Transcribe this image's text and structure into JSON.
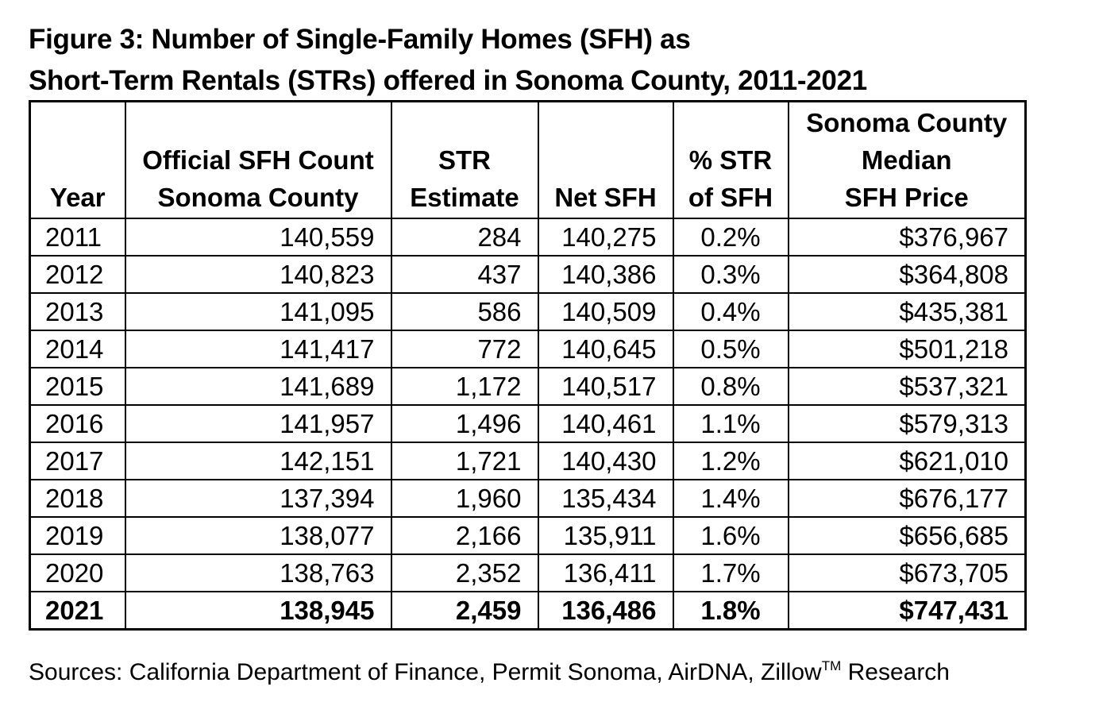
{
  "title": {
    "line1": "Figure 3: Number of Single-Family Homes (SFH) as",
    "line2": "Short-Term Rentals (STRs) offered in Sonoma County, 2011-2021"
  },
  "table": {
    "headers": {
      "year": [
        "Year"
      ],
      "official": [
        "Official SFH Count",
        "Sonoma County"
      ],
      "str": [
        "STR",
        "Estimate"
      ],
      "net": [
        "Net SFH"
      ],
      "pct": [
        "% STR",
        "of SFH"
      ],
      "price": [
        "Sonoma County",
        "Median",
        "SFH Price"
      ]
    },
    "rows": [
      {
        "year": "2011",
        "official": "140,559",
        "str": "284",
        "net": "140,275",
        "pct": "0.2%",
        "price": "$376,967"
      },
      {
        "year": "2012",
        "official": "140,823",
        "str": "437",
        "net": "140,386",
        "pct": "0.3%",
        "price": "$364,808"
      },
      {
        "year": "2013",
        "official": "141,095",
        "str": "586",
        "net": "140,509",
        "pct": "0.4%",
        "price": "$435,381"
      },
      {
        "year": "2014",
        "official": "141,417",
        "str": "772",
        "net": "140,645",
        "pct": "0.5%",
        "price": "$501,218"
      },
      {
        "year": "2015",
        "official": "141,689",
        "str": "1,172",
        "net": "140,517",
        "pct": "0.8%",
        "price": "$537,321"
      },
      {
        "year": "2016",
        "official": "141,957",
        "str": "1,496",
        "net": "140,461",
        "pct": "1.1%",
        "price": "$579,313"
      },
      {
        "year": "2017",
        "official": "142,151",
        "str": "1,721",
        "net": "140,430",
        "pct": "1.2%",
        "price": "$621,010"
      },
      {
        "year": "2018",
        "official": "137,394",
        "str": "1,960",
        "net": "135,434",
        "pct": "1.4%",
        "price": "$676,177"
      },
      {
        "year": "2019",
        "official": "138,077",
        "str": "2,166",
        "net": "135,911",
        "pct": "1.6%",
        "price": "$656,685"
      },
      {
        "year": "2020",
        "official": "138,763",
        "str": "2,352",
        "net": "136,411",
        "pct": "1.7%",
        "price": "$673,705"
      },
      {
        "year": "2021",
        "official": "138,945",
        "str": "2,459",
        "net": "136,486",
        "pct": "1.8%",
        "price": "$747,431"
      }
    ]
  },
  "sources": {
    "text": "Sources: California Department of Finance, Permit Sonoma, AirDNA, Zillow",
    "trademark": "TM",
    "suffix": " Research"
  }
}
